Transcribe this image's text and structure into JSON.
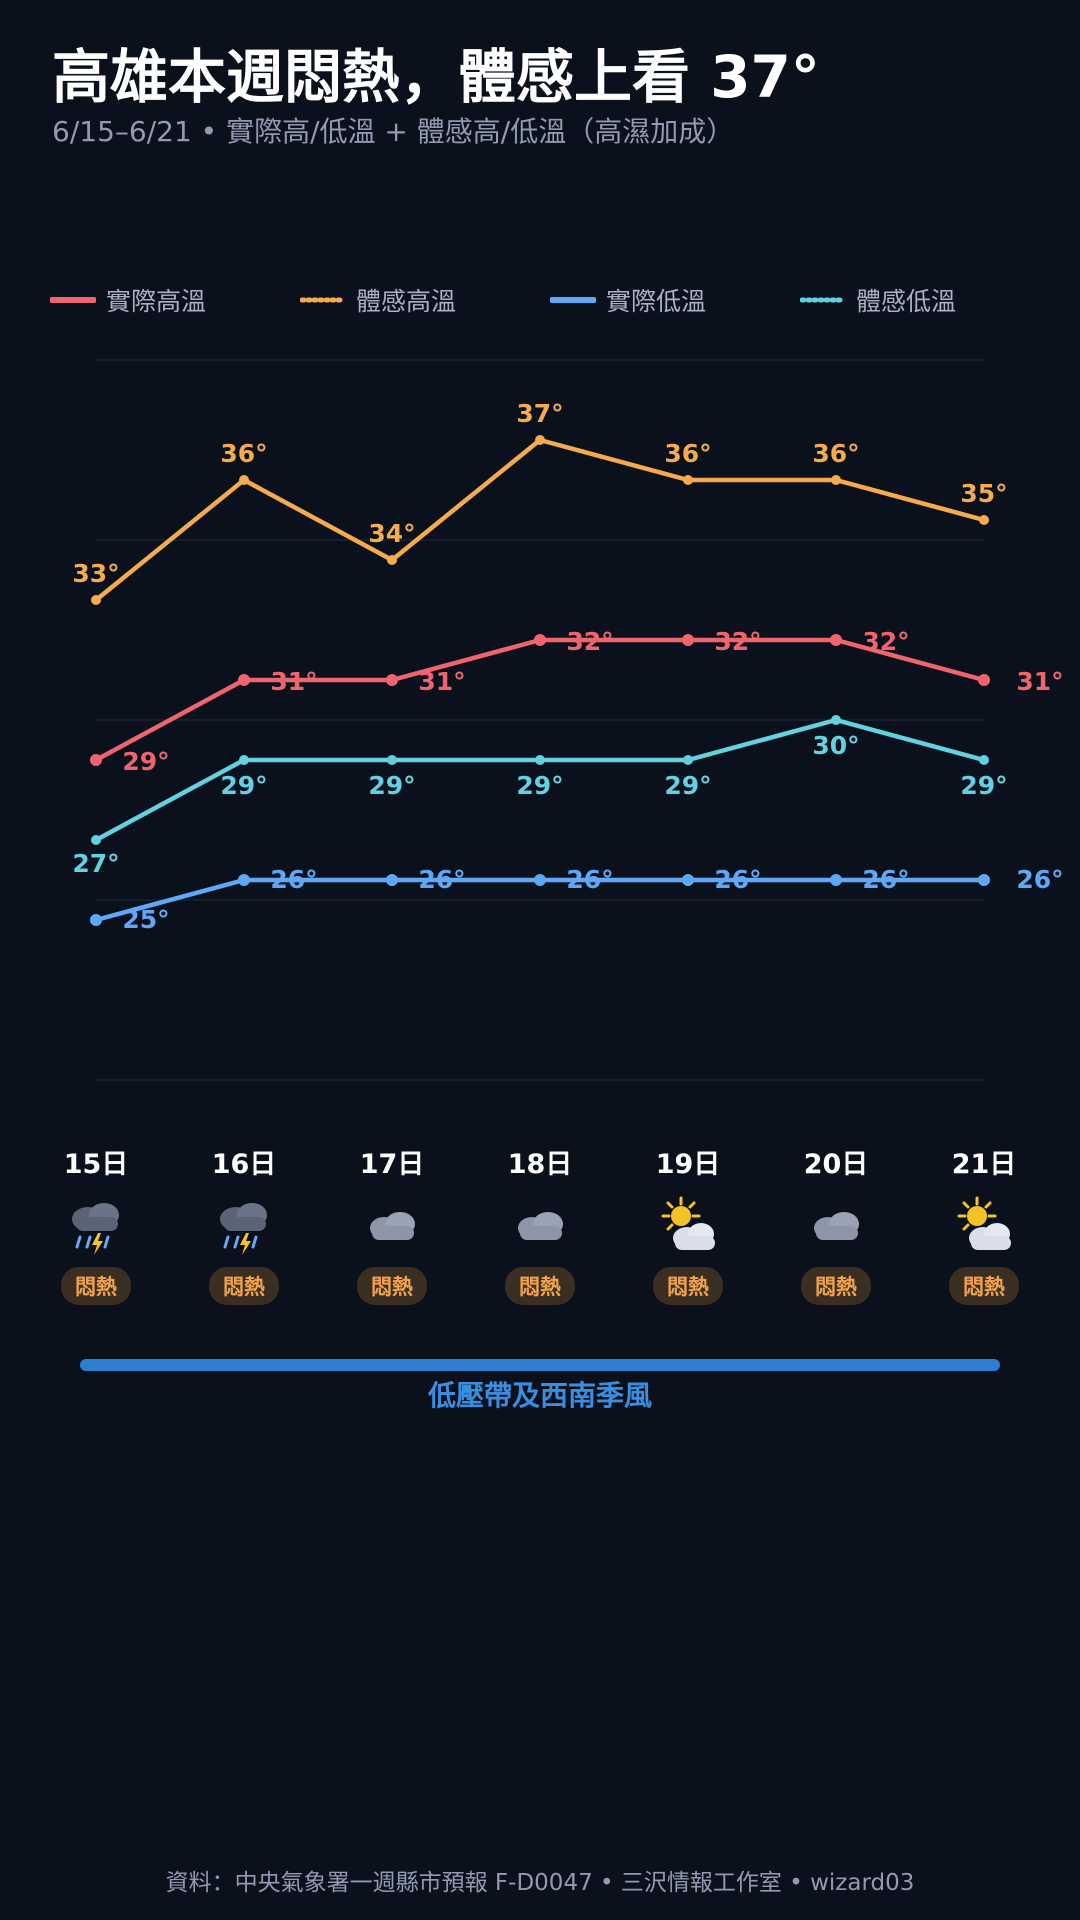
{
  "header": {
    "title": "高雄本週悶熱，體感上看 37°",
    "subtitle": "6/15–6/21 • 實際高/低溫 + 體感高/低溫（高濕加成）"
  },
  "chart_data": {
    "type": "line",
    "categories": [
      "15日",
      "16日",
      "17日",
      "18日",
      "19日",
      "20日",
      "21日"
    ],
    "ylim": [
      21,
      39
    ],
    "grid": true,
    "legend": "top",
    "series": [
      {
        "key": "actual_high",
        "name": "實際高溫",
        "values": [
          29,
          31,
          31,
          32,
          32,
          32,
          31
        ],
        "color": "#f0656d",
        "style": "solid"
      },
      {
        "key": "feels_high",
        "name": "體感高溫",
        "values": [
          33,
          36,
          34,
          37,
          36,
          36,
          35
        ],
        "color": "#f5aa4e",
        "style": "dotted"
      },
      {
        "key": "actual_low",
        "name": "實際低溫",
        "values": [
          25,
          26,
          26,
          26,
          26,
          26,
          26
        ],
        "color": "#5ea8f7",
        "style": "solid"
      },
      {
        "key": "feels_low",
        "name": "體感低溫",
        "values": [
          27,
          29,
          29,
          29,
          29,
          30,
          29
        ],
        "color": "#62d2e0",
        "style": "dotted"
      }
    ],
    "value_suffix": "°"
  },
  "days": [
    {
      "label": "15日",
      "icon": "thunderstorm-icon",
      "badge": "悶熱"
    },
    {
      "label": "16日",
      "icon": "thunderstorm-icon",
      "badge": "悶熱"
    },
    {
      "label": "17日",
      "icon": "cloud-icon",
      "badge": "悶熱"
    },
    {
      "label": "18日",
      "icon": "cloud-icon",
      "badge": "悶熱"
    },
    {
      "label": "19日",
      "icon": "partly-sunny-icon",
      "badge": "悶熱"
    },
    {
      "label": "20日",
      "icon": "cloud-icon",
      "badge": "悶熱"
    },
    {
      "label": "21日",
      "icon": "partly-sunny-icon",
      "badge": "悶熱"
    }
  ],
  "band": {
    "label": "低壓帶及西南季風",
    "color": "#2d7fd1"
  },
  "footer": {
    "text": "資料：中央氣象署一週縣市預報 F-D0047 • 三沢情報工作室 • wizard03"
  }
}
